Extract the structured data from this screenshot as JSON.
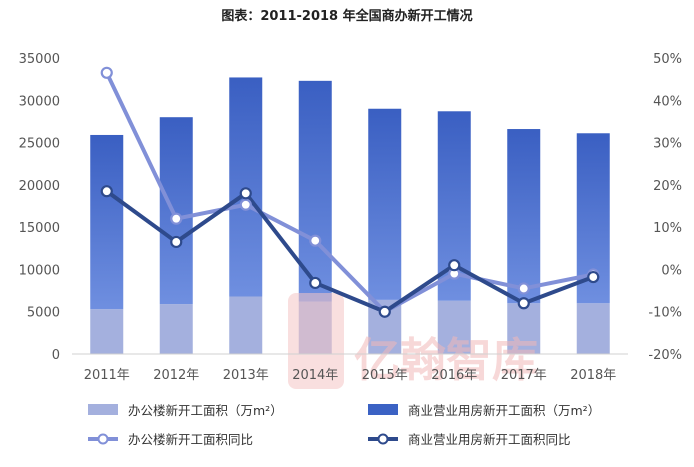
{
  "chart_data": {
    "type": "bar",
    "title": "图表：2011-2018 年全国商办新开工情况",
    "categories": [
      "2011年",
      "2012年",
      "2013年",
      "2014年",
      "2015年",
      "2016年",
      "2017年",
      "2018年"
    ],
    "y_left": {
      "ylim": [
        0,
        35000
      ],
      "ticks": [
        "0",
        "5000",
        "10000",
        "15000",
        "20000",
        "25000",
        "30000",
        "35000"
      ]
    },
    "y_right": {
      "ylim": [
        -20,
        50
      ],
      "ticks": [
        "-20%",
        "-10%",
        "0%",
        "10%",
        "20%",
        "30%",
        "40%",
        "50%"
      ]
    },
    "bars": [
      {
        "name": "办公楼新开工面积（万m²）",
        "color": "#a4b0de",
        "values": [
          5300,
          5900,
          6800,
          6200,
          6400,
          6300,
          6000,
          6000
        ]
      },
      {
        "name": "商业营业用房新开工面积（万m²）",
        "color": "#3b62c4",
        "values": [
          20600,
          22100,
          25900,
          26100,
          22600,
          22400,
          20600,
          20100
        ]
      }
    ],
    "lines": [
      {
        "name": "办公楼新开工面积同比",
        "color": "#8190d8",
        "values": [
          46.5,
          12.0,
          15.3,
          6.8,
          -10.0,
          -1.0,
          -4.5,
          -1.2
        ]
      },
      {
        "name": "商业营业用房新开工面积同比",
        "color": "#2e4a8c",
        "values": [
          18.5,
          6.5,
          18.0,
          -3.2,
          -10.0,
          1.0,
          -8.0,
          -1.8
        ]
      }
    ],
    "grid": false,
    "legend_position": "bottom"
  },
  "watermark": "亿翰智库"
}
